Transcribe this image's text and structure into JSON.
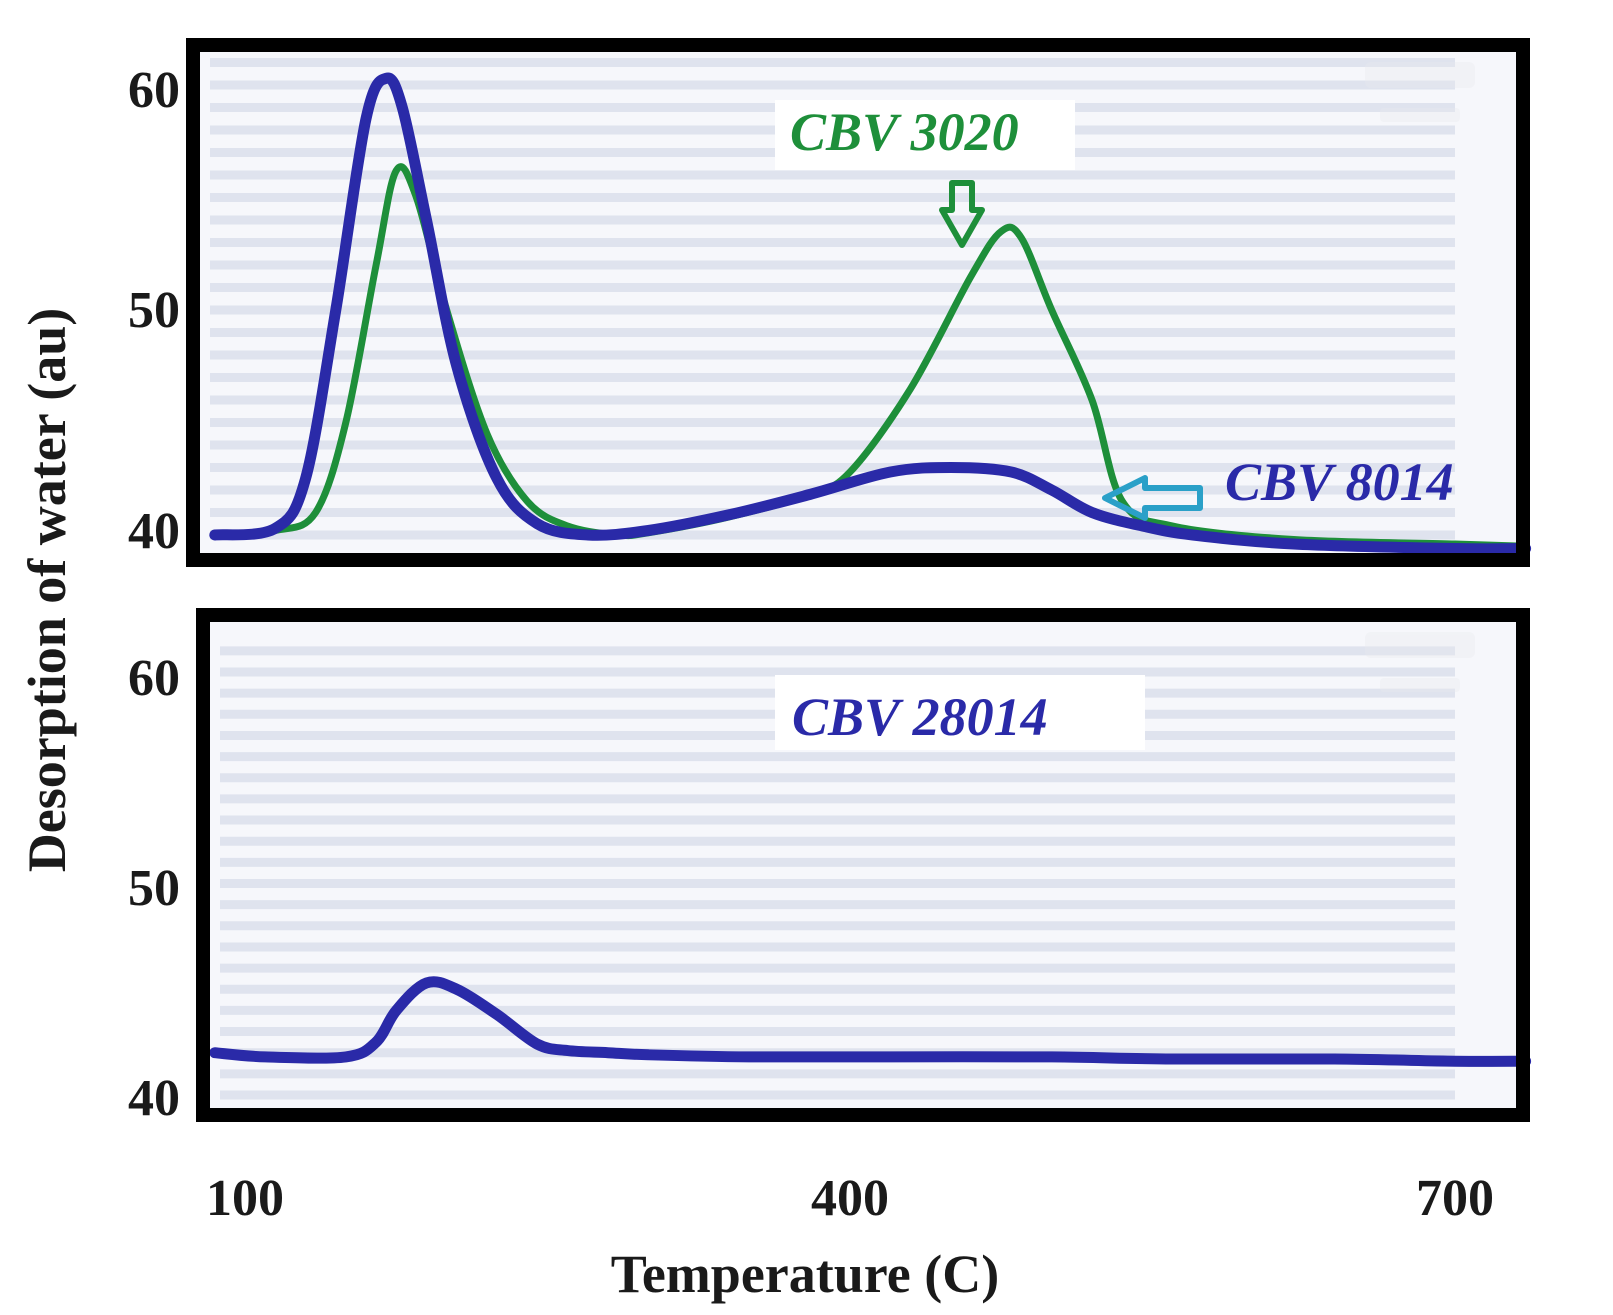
{
  "chart_data": [
    {
      "type": "line",
      "panel": "top",
      "xlabel": "Temperature (C)",
      "ylabel": "Desorption of water (au)",
      "xlim": [
        80,
        740
      ],
      "ylim": [
        39,
        62
      ],
      "xticks": [
        "100",
        "400",
        "700"
      ],
      "yticks": [
        "40",
        "50",
        "60"
      ],
      "annotations": [
        "CBV 3020",
        "CBV 8014"
      ],
      "series": [
        {
          "name": "CBV 3020",
          "color": "#1e8f3a",
          "x": [
            85,
            115,
            135,
            150,
            165,
            175,
            185,
            200,
            220,
            240,
            260,
            285,
            300,
            340,
            380,
            400,
            430,
            460,
            475,
            485,
            500,
            520,
            535,
            560,
            620,
            700,
            735
          ],
          "y": [
            40.0,
            40.2,
            41.0,
            45.0,
            52.0,
            56.2,
            55.0,
            50.0,
            44.5,
            41.5,
            40.4,
            40.0,
            40.1,
            40.8,
            41.8,
            42.8,
            46.5,
            51.5,
            53.5,
            53.2,
            50.0,
            46.0,
            41.5,
            40.4,
            39.8,
            39.6,
            39.5
          ]
        },
        {
          "name": "CBV 8014",
          "color": "#2a2aa8",
          "x": [
            85,
            115,
            130,
            145,
            160,
            170,
            178,
            190,
            205,
            225,
            245,
            270,
            300,
            340,
            380,
            420,
            450,
            480,
            500,
            520,
            545,
            570,
            620,
            700,
            735
          ],
          "y": [
            40.0,
            40.3,
            42.5,
            50.0,
            58.5,
            60.3,
            59.0,
            54.0,
            47.5,
            42.5,
            40.5,
            40.0,
            40.2,
            40.9,
            41.8,
            42.8,
            43.0,
            42.8,
            42.0,
            41.0,
            40.4,
            40.0,
            39.6,
            39.4,
            39.4
          ]
        }
      ]
    },
    {
      "type": "line",
      "panel": "bottom",
      "xlabel": "Temperature (C)",
      "ylabel": "Desorption of water (au)",
      "xlim": [
        80,
        740
      ],
      "ylim": [
        39,
        62
      ],
      "xticks": [
        "100",
        "400",
        "700"
      ],
      "yticks": [
        "40",
        "50",
        "60"
      ],
      "annotations": [
        "CBV 28014"
      ],
      "series": [
        {
          "name": "CBV 28014",
          "color": "#2a2aa8",
          "x": [
            85,
            110,
            150,
            165,
            175,
            190,
            205,
            225,
            245,
            260,
            280,
            300,
            350,
            420,
            500,
            560,
            640,
            700,
            735
          ],
          "y": [
            42.0,
            41.8,
            41.8,
            42.5,
            44.0,
            45.3,
            45.0,
            43.8,
            42.4,
            42.1,
            42.0,
            41.9,
            41.8,
            41.8,
            41.8,
            41.7,
            41.7,
            41.6,
            41.6
          ]
        }
      ]
    }
  ],
  "labels": {
    "xlabel": "Temperature (C)",
    "ylabel": "Desorption of water (au)",
    "x_ticks": [
      "100",
      "400",
      "700"
    ],
    "top_y_ticks": [
      "60",
      "50",
      "40"
    ],
    "bottom_y_ticks": [
      "60",
      "50",
      "40"
    ],
    "top_annotation_1": "CBV 3020",
    "top_annotation_2": "CBV 8014",
    "bottom_annotation": "CBV 28014"
  },
  "colors": {
    "green": "#1e8f3a",
    "blue": "#2a2aa8",
    "arrow": "#2aa0c8"
  }
}
